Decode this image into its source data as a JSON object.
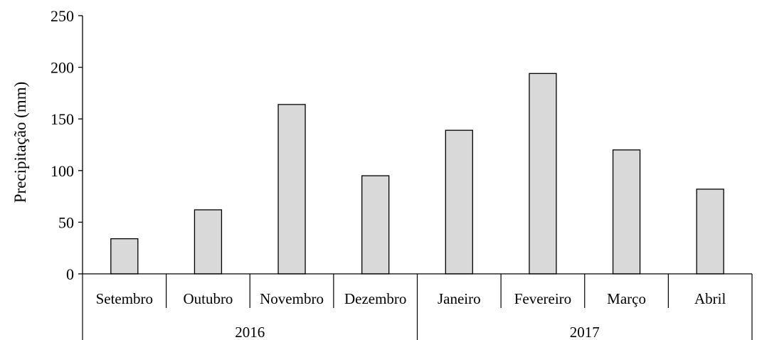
{
  "chart_data": {
    "type": "bar",
    "ylabel": "Precipitação  (mm)",
    "xlabel": "",
    "ylim": [
      0,
      250
    ],
    "yticks": [
      0,
      50,
      100,
      150,
      200,
      250
    ],
    "categories": [
      "Setembro",
      "Outubro",
      "Novembro",
      "Dezembro",
      "Janeiro",
      "Fevereiro",
      "Março",
      "Abril"
    ],
    "values": [
      34,
      62,
      164,
      95,
      139,
      194,
      120,
      82
    ],
    "groups": [
      {
        "label": "2016",
        "count": 4
      },
      {
        "label": "2017",
        "count": 4
      }
    ],
    "bar_color": "#d9d9d9",
    "bar_edge_color": "#000000",
    "grid": false
  }
}
